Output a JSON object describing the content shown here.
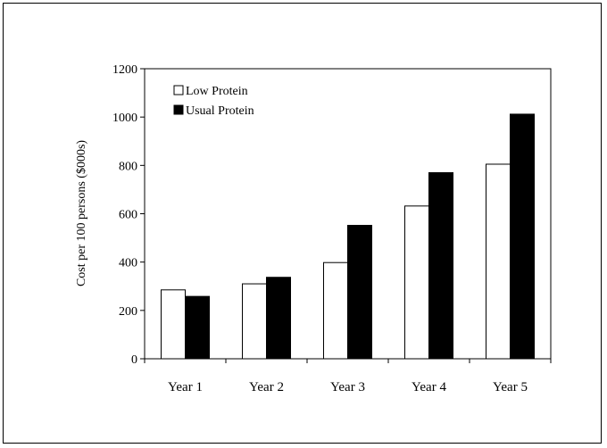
{
  "chart_data": {
    "type": "bar",
    "title": "",
    "xlabel": "",
    "ylabel": "Cost per 100 persons ($000s)",
    "categories": [
      "Year 1",
      "Year 2",
      "Year 3",
      "Year 4",
      "Year 5"
    ],
    "series": [
      {
        "name": "Low Protein",
        "values": [
          285,
          310,
          398,
          632,
          805
        ],
        "color": "#ffffff"
      },
      {
        "name": "Usual Protein",
        "values": [
          258,
          337,
          552,
          770,
          1012
        ],
        "color": "#000000"
      }
    ],
    "ylim": [
      0,
      1200
    ],
    "yticks": [
      0,
      200,
      400,
      600,
      800,
      1000,
      1200
    ],
    "grid": false,
    "legend": "top-left"
  }
}
